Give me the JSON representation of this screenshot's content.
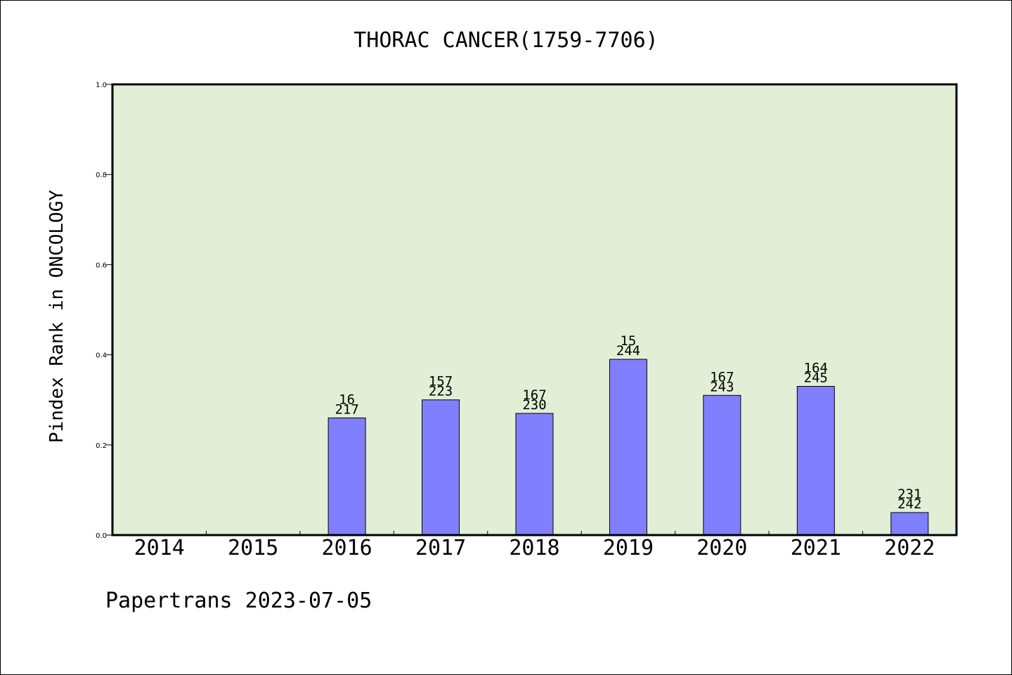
{
  "chart_data": {
    "type": "bar",
    "title": "THORAC CANCER(1759-7706)",
    "ylabel": "Pindex Rank in ONCOLOGY",
    "xlabel": "",
    "ylim": [
      0.0,
      1.0
    ],
    "yticks": [
      "0.0",
      "0.2",
      "0.4",
      "0.6",
      "0.8",
      "1.0"
    ],
    "categories": [
      "2014",
      "2015",
      "2016",
      "2017",
      "2018",
      "2019",
      "2020",
      "2021",
      "2022"
    ],
    "values": [
      null,
      null,
      0.26,
      0.3,
      0.27,
      0.39,
      0.31,
      0.33,
      0.05
    ],
    "bar_labels_top": [
      "",
      "",
      "16",
      "157",
      "167",
      "15",
      "167",
      "164",
      "231"
    ],
    "bar_labels_bottom": [
      "",
      "",
      "217",
      "223",
      "230",
      "244",
      "243",
      "245",
      "242"
    ],
    "grid": false,
    "colors": {
      "plot_background": "#e2efd6",
      "bar_fill": "#8080ff",
      "bar_stroke": "#000000"
    }
  },
  "footer": {
    "credit": "Papertrans 2023-07-05"
  }
}
